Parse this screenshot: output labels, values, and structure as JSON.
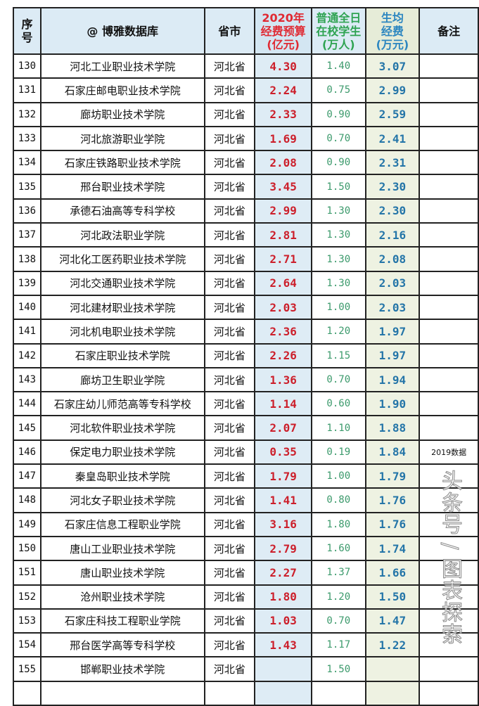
{
  "table": {
    "headers": [
      "序号",
      "@ 博雅数据库",
      "省市",
      "2020年\n经费预算\n(亿元)",
      "普通全日\n在校学生\n(万人)",
      "生均\n经费\n(万元)",
      "备注"
    ],
    "rows": [
      {
        "no": "130",
        "name": "河北工业职业技术学院",
        "prov": "河北省",
        "budget": "4.30",
        "students": "1.40",
        "avg": "3.07",
        "note": ""
      },
      {
        "no": "131",
        "name": "石家庄邮电职业技术学院",
        "prov": "河北省",
        "budget": "2.24",
        "students": "0.75",
        "avg": "2.99",
        "note": ""
      },
      {
        "no": "132",
        "name": "廊坊职业技术学院",
        "prov": "河北省",
        "budget": "2.33",
        "students": "0.90",
        "avg": "2.59",
        "note": ""
      },
      {
        "no": "133",
        "name": "河北旅游职业学院",
        "prov": "河北省",
        "budget": "1.69",
        "students": "0.70",
        "avg": "2.41",
        "note": ""
      },
      {
        "no": "134",
        "name": "石家庄铁路职业技术学院",
        "prov": "河北省",
        "budget": "2.08",
        "students": "0.90",
        "avg": "2.31",
        "note": ""
      },
      {
        "no": "135",
        "name": "邢台职业技术学院",
        "prov": "河北省",
        "budget": "3.45",
        "students": "1.50",
        "avg": "2.30",
        "note": ""
      },
      {
        "no": "136",
        "name": "承德石油高等专科学校",
        "prov": "河北省",
        "budget": "2.99",
        "students": "1.30",
        "avg": "2.30",
        "note": ""
      },
      {
        "no": "137",
        "name": "河北政法职业学院",
        "prov": "河北省",
        "budget": "2.81",
        "students": "1.30",
        "avg": "2.16",
        "note": ""
      },
      {
        "no": "138",
        "name": "河北化工医药职业技术学院",
        "prov": "河北省",
        "budget": "2.71",
        "students": "1.30",
        "avg": "2.08",
        "note": ""
      },
      {
        "no": "139",
        "name": "河北交通职业技术学院",
        "prov": "河北省",
        "budget": "2.64",
        "students": "1.30",
        "avg": "2.03",
        "note": ""
      },
      {
        "no": "140",
        "name": "河北建材职业技术学院",
        "prov": "河北省",
        "budget": "2.03",
        "students": "1.00",
        "avg": "2.03",
        "note": ""
      },
      {
        "no": "141",
        "name": "河北机电职业技术学院",
        "prov": "河北省",
        "budget": "2.36",
        "students": "1.20",
        "avg": "1.97",
        "note": ""
      },
      {
        "no": "142",
        "name": "石家庄职业技术学院",
        "prov": "河北省",
        "budget": "2.26",
        "students": "1.15",
        "avg": "1.97",
        "note": ""
      },
      {
        "no": "143",
        "name": "廊坊卫生职业学院",
        "prov": "河北省",
        "budget": "1.36",
        "students": "0.70",
        "avg": "1.94",
        "note": ""
      },
      {
        "no": "144",
        "name": "石家庄幼儿师范高等专科学校",
        "prov": "河北省",
        "budget": "1.14",
        "students": "0.60",
        "avg": "1.90",
        "note": ""
      },
      {
        "no": "145",
        "name": "河北软件职业技术学院",
        "prov": "河北省",
        "budget": "2.07",
        "students": "1.10",
        "avg": "1.88",
        "note": ""
      },
      {
        "no": "146",
        "name": "保定电力职业技术学院",
        "prov": "河北省",
        "budget": "0.35",
        "students": "0.19",
        "avg": "1.84",
        "note": "2019数据"
      },
      {
        "no": "147",
        "name": "秦皇岛职业技术学院",
        "prov": "河北省",
        "budget": "1.79",
        "students": "1.00",
        "avg": "1.79",
        "note": ""
      },
      {
        "no": "148",
        "name": "河北女子职业技术学院",
        "prov": "河北省",
        "budget": "1.41",
        "students": "0.80",
        "avg": "1.76",
        "note": ""
      },
      {
        "no": "149",
        "name": "石家庄信息工程职业学院",
        "prov": "河北省",
        "budget": "3.16",
        "students": "1.80",
        "avg": "1.76",
        "note": ""
      },
      {
        "no": "150",
        "name": "唐山工业职业技术学院",
        "prov": "河北省",
        "budget": "2.79",
        "students": "1.60",
        "avg": "1.74",
        "note": ""
      },
      {
        "no": "151",
        "name": "唐山职业技术学院",
        "prov": "河北省",
        "budget": "2.27",
        "students": "1.37",
        "avg": "1.66",
        "note": ""
      },
      {
        "no": "152",
        "name": "沧州职业技术学院",
        "prov": "河北省",
        "budget": "1.80",
        "students": "1.20",
        "avg": "1.50",
        "note": ""
      },
      {
        "no": "153",
        "name": "石家庄科技工程职业学院",
        "prov": "河北省",
        "budget": "1.03",
        "students": "0.70",
        "avg": "1.47",
        "note": ""
      },
      {
        "no": "154",
        "name": "邢台医学高等专科学校",
        "prov": "河北省",
        "budget": "1.43",
        "students": "1.17",
        "avg": "1.22",
        "note": ""
      },
      {
        "no": "155",
        "name": "邯郸职业技术学院",
        "prov": "河北省",
        "budget": "",
        "students": "1.50",
        "avg": "",
        "note": ""
      },
      {
        "no": "",
        "name": "",
        "prov": "",
        "budget": "",
        "students": "",
        "avg": "",
        "note": ""
      }
    ]
  },
  "watermark": "头条号 / 图表探索",
  "colors": {
    "budget_text": "#cc1f2b",
    "students_text": "#3c9a6c",
    "avg_text": "#2475a8",
    "header_bg": "#dcebf5"
  }
}
